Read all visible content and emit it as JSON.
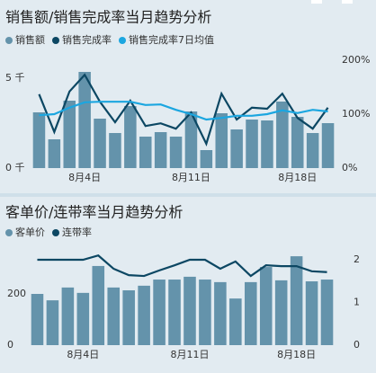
{
  "chart_data": [
    {
      "type": "bar",
      "title": "销售额/销售完成率当月趋势分析",
      "categories": [
        null,
        null,
        null,
        "8月4日",
        null,
        null,
        null,
        null,
        null,
        null,
        "8月11日",
        null,
        null,
        null,
        null,
        null,
        null,
        "8月18日",
        null,
        null
      ],
      "series": [
        {
          "name": "销售额",
          "type": "bar",
          "color": "#6493ab",
          "values": [
            3.1,
            1.6,
            3.75,
            5.35,
            2.75,
            1.95,
            3.45,
            1.75,
            2.0,
            1.75,
            3.15,
            1.0,
            3.05,
            2.15,
            2.7,
            2.65,
            3.7,
            2.85,
            1.95,
            2.5
          ]
        },
        {
          "name": "销售完成率",
          "type": "line",
          "axis": "y2",
          "color": "#0c4763",
          "values": [
            137,
            67,
            142,
            173,
            123,
            85,
            125,
            78,
            83,
            73,
            103,
            45,
            138,
            90,
            112,
            110,
            138,
            93,
            73,
            112
          ]
        },
        {
          "name": "销售完成率7日均值",
          "type": "line",
          "axis": "y2",
          "color": "#1ba6e0",
          "values": [
            98,
            100,
            112,
            122,
            123,
            123,
            123,
            117,
            118,
            108,
            100,
            90,
            93,
            97,
            97,
            100,
            107,
            102,
            108,
            105
          ]
        }
      ],
      "ylim": [
        0,
        6
      ],
      "yticks": [
        {
          "value": 0,
          "label": "0 千"
        },
        {
          "value": 5,
          "label": "5 千"
        }
      ],
      "y2lim": [
        0,
        200
      ],
      "y2ticks": [
        {
          "value": 0,
          "label": "0%"
        },
        {
          "value": 100,
          "label": "100%"
        },
        {
          "value": 200,
          "label": "200%"
        }
      ]
    },
    {
      "type": "bar",
      "title": "客单价/连带率当月趋势分析",
      "categories": [
        null,
        null,
        null,
        "8月4日",
        null,
        null,
        null,
        null,
        null,
        null,
        "8月11日",
        null,
        null,
        null,
        null,
        null,
        null,
        "8月18日",
        null,
        null
      ],
      "series": [
        {
          "name": "客单价",
          "type": "bar",
          "color": "#6493ab",
          "values": [
            200,
            175,
            225,
            204,
            309,
            225,
            214,
            232,
            256,
            256,
            267,
            256,
            246,
            182,
            246,
            305,
            253,
            347,
            249,
            256
          ]
        },
        {
          "name": "连带率",
          "type": "line",
          "axis": "y2",
          "color": "#0c4763",
          "values": [
            2.0,
            2.0,
            2.0,
            2.0,
            2.1,
            1.79,
            1.64,
            1.62,
            1.75,
            1.87,
            2.0,
            2.0,
            1.79,
            1.96,
            1.62,
            1.87,
            1.85,
            1.85,
            1.73,
            1.71
          ]
        }
      ],
      "ylim": [
        0,
        400
      ],
      "yticks": [
        0,
        200
      ],
      "y2lim": [
        0,
        2.4
      ],
      "y2ticks": [
        0,
        1,
        2
      ]
    }
  ]
}
